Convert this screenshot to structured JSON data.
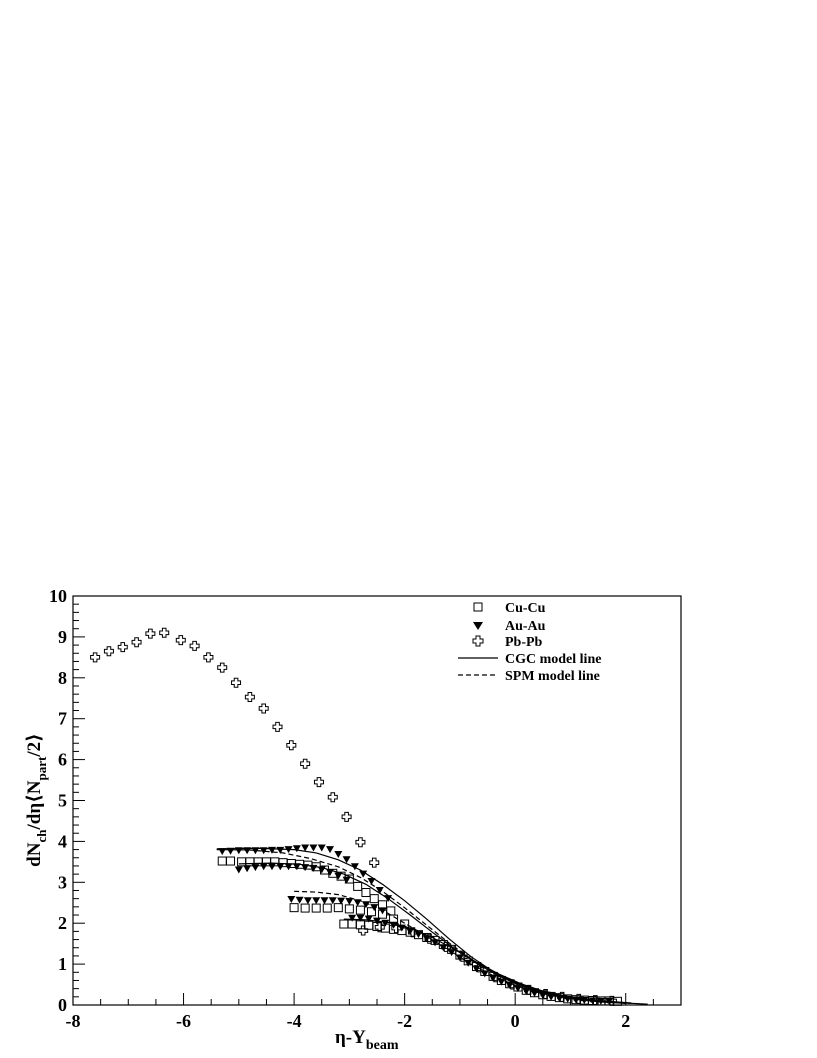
{
  "chart_data": {
    "type": "scatter",
    "title": "",
    "xlabel": "η-Y",
    "xlabel_sub": "beam",
    "ylabel_parts": [
      "dN",
      "ch",
      "/dη⟨N",
      "part",
      "/2⟩"
    ],
    "xlim": [
      -8,
      3
    ],
    "ylim": [
      0,
      10
    ],
    "x_ticks": [
      -8,
      -6,
      -4,
      -2,
      0,
      2
    ],
    "y_ticks": [
      0,
      1,
      2,
      3,
      4,
      5,
      6,
      7,
      8,
      9,
      10
    ],
    "grid": false,
    "legend_position": "top-right",
    "series": [
      {
        "name": "Cu-Cu",
        "marker": "open-square",
        "points": [
          [
            -5.3,
            3.52
          ],
          [
            -5.15,
            3.52
          ],
          [
            -4.95,
            3.5
          ],
          [
            -4.8,
            3.5
          ],
          [
            -4.65,
            3.5
          ],
          [
            -4.5,
            3.5
          ],
          [
            -4.35,
            3.5
          ],
          [
            -4.2,
            3.48
          ],
          [
            -4.05,
            3.46
          ],
          [
            -3.9,
            3.44
          ],
          [
            -3.75,
            3.42
          ],
          [
            -3.6,
            3.38
          ],
          [
            -3.45,
            3.3
          ],
          [
            -3.3,
            3.22
          ],
          [
            -3.15,
            3.15
          ],
          [
            -3.0,
            3.08
          ],
          [
            -2.85,
            2.9
          ],
          [
            -2.7,
            2.75
          ],
          [
            -2.55,
            2.6
          ],
          [
            -2.4,
            2.45
          ],
          [
            -2.25,
            2.3
          ],
          [
            -4.0,
            2.38
          ],
          [
            -3.8,
            2.37
          ],
          [
            -3.6,
            2.37
          ],
          [
            -3.4,
            2.37
          ],
          [
            -3.2,
            2.38
          ],
          [
            -3.0,
            2.35
          ],
          [
            -2.8,
            2.32
          ],
          [
            -2.6,
            2.28
          ],
          [
            -2.4,
            2.22
          ],
          [
            -2.2,
            2.1
          ],
          [
            -2.0,
            1.98
          ],
          [
            -3.1,
            1.98
          ],
          [
            -2.95,
            1.98
          ],
          [
            -2.8,
            1.96
          ],
          [
            -2.65,
            1.95
          ],
          [
            -2.5,
            1.92
          ],
          [
            -2.35,
            1.88
          ],
          [
            -2.2,
            1.85
          ],
          [
            -2.05,
            1.82
          ],
          [
            -1.9,
            1.78
          ],
          [
            -1.75,
            1.72
          ],
          [
            -1.6,
            1.65
          ],
          [
            -1.45,
            1.58
          ],
          [
            -1.3,
            1.48
          ],
          [
            -1.15,
            1.36
          ],
          [
            -1.0,
            1.22
          ],
          [
            -0.85,
            1.08
          ],
          [
            -0.7,
            0.94
          ],
          [
            -0.55,
            0.82
          ],
          [
            -0.4,
            0.7
          ],
          [
            -0.25,
            0.6
          ],
          [
            -0.1,
            0.52
          ],
          [
            0.05,
            0.44
          ],
          [
            0.2,
            0.36
          ],
          [
            0.35,
            0.3
          ],
          [
            0.5,
            0.25
          ],
          [
            0.65,
            0.21
          ],
          [
            0.8,
            0.18
          ],
          [
            0.95,
            0.15
          ],
          [
            1.1,
            0.13
          ],
          [
            1.25,
            0.12
          ],
          [
            1.4,
            0.11
          ],
          [
            1.55,
            0.1
          ],
          [
            1.7,
            0.1
          ],
          [
            1.85,
            0.09
          ]
        ]
      },
      {
        "name": "Au-Au",
        "marker": "filled-triangle-down",
        "points": [
          [
            -5.3,
            3.75
          ],
          [
            -5.15,
            3.76
          ],
          [
            -5.0,
            3.77
          ],
          [
            -4.85,
            3.77
          ],
          [
            -4.7,
            3.77
          ],
          [
            -4.55,
            3.77
          ],
          [
            -4.4,
            3.78
          ],
          [
            -4.25,
            3.78
          ],
          [
            -4.1,
            3.8
          ],
          [
            -3.95,
            3.82
          ],
          [
            -3.8,
            3.84
          ],
          [
            -3.65,
            3.84
          ],
          [
            -3.5,
            3.84
          ],
          [
            -3.35,
            3.8
          ],
          [
            -3.2,
            3.68
          ],
          [
            -3.05,
            3.55
          ],
          [
            -2.9,
            3.38
          ],
          [
            -2.75,
            3.2
          ],
          [
            -2.6,
            3.02
          ],
          [
            -2.45,
            2.8
          ],
          [
            -2.3,
            2.6
          ],
          [
            -5.0,
            3.3
          ],
          [
            -4.85,
            3.33
          ],
          [
            -4.7,
            3.36
          ],
          [
            -4.55,
            3.38
          ],
          [
            -4.4,
            3.38
          ],
          [
            -4.25,
            3.38
          ],
          [
            -4.1,
            3.38
          ],
          [
            -3.95,
            3.38
          ],
          [
            -3.8,
            3.36
          ],
          [
            -3.65,
            3.34
          ],
          [
            -3.5,
            3.3
          ],
          [
            -3.35,
            3.24
          ],
          [
            -3.2,
            3.15
          ],
          [
            -3.05,
            3.05
          ],
          [
            -4.05,
            2.58
          ],
          [
            -3.9,
            2.56
          ],
          [
            -3.75,
            2.55
          ],
          [
            -3.6,
            2.55
          ],
          [
            -3.45,
            2.55
          ],
          [
            -3.3,
            2.55
          ],
          [
            -3.15,
            2.54
          ],
          [
            -3.0,
            2.53
          ],
          [
            -2.85,
            2.5
          ],
          [
            -2.7,
            2.45
          ],
          [
            -2.55,
            2.38
          ],
          [
            -2.4,
            2.3
          ],
          [
            -2.95,
            2.12
          ],
          [
            -2.8,
            2.12
          ],
          [
            -2.65,
            2.1
          ],
          [
            -2.5,
            2.05
          ],
          [
            -2.35,
            2.0
          ],
          [
            -2.2,
            1.95
          ],
          [
            -2.05,
            1.88
          ],
          [
            -1.9,
            1.8
          ],
          [
            -1.75,
            1.72
          ],
          [
            -1.6,
            1.62
          ],
          [
            -1.45,
            1.52
          ],
          [
            -1.3,
            1.4
          ],
          [
            -1.15,
            1.28
          ],
          [
            -1.0,
            1.15
          ],
          [
            -0.85,
            1.02
          ],
          [
            -0.7,
            0.88
          ],
          [
            -0.55,
            0.76
          ],
          [
            -0.4,
            0.65
          ],
          [
            -0.25,
            0.56
          ],
          [
            -0.1,
            0.48
          ],
          [
            0.05,
            0.4
          ],
          [
            0.2,
            0.33
          ],
          [
            0.35,
            0.28
          ],
          [
            0.5,
            0.23
          ],
          [
            0.65,
            0.19
          ],
          [
            0.8,
            0.16
          ],
          [
            0.95,
            0.14
          ],
          [
            1.1,
            0.12
          ],
          [
            1.25,
            0.11
          ],
          [
            1.4,
            0.1
          ],
          [
            1.55,
            0.09
          ],
          [
            1.7,
            0.09
          ]
        ]
      },
      {
        "name": "Pb-Pb",
        "marker": "open-cross",
        "points": [
          [
            -7.6,
            8.5
          ],
          [
            -7.35,
            8.65
          ],
          [
            -7.1,
            8.75
          ],
          [
            -6.85,
            8.87
          ],
          [
            -6.6,
            9.08
          ],
          [
            -6.35,
            9.1
          ],
          [
            -6.05,
            8.92
          ],
          [
            -5.8,
            8.78
          ],
          [
            -5.55,
            8.5
          ],
          [
            -5.3,
            8.25
          ],
          [
            -5.05,
            7.88
          ],
          [
            -4.8,
            7.53
          ],
          [
            -4.55,
            7.25
          ],
          [
            -4.3,
            6.8
          ],
          [
            -4.05,
            6.35
          ],
          [
            -3.8,
            5.9
          ],
          [
            -3.55,
            5.45
          ],
          [
            -3.3,
            5.08
          ],
          [
            -3.05,
            4.6
          ],
          [
            -2.8,
            3.98
          ],
          [
            -2.55,
            3.48
          ],
          [
            -2.75,
            1.82
          ],
          [
            -2.45,
            1.9
          ],
          [
            -2.15,
            1.88
          ],
          [
            -1.85,
            1.78
          ],
          [
            -1.55,
            1.62
          ],
          [
            -1.25,
            1.42
          ],
          [
            -0.95,
            1.18
          ],
          [
            -0.65,
            0.92
          ],
          [
            -0.35,
            0.68
          ],
          [
            -0.05,
            0.5
          ],
          [
            0.25,
            0.37
          ],
          [
            0.55,
            0.27
          ],
          [
            0.85,
            0.2
          ],
          [
            1.15,
            0.15
          ],
          [
            1.45,
            0.12
          ],
          [
            1.75,
            0.1
          ]
        ]
      },
      {
        "name": "CGC model line",
        "marker": "solid-line",
        "lines": [
          [
            [
              -5.4,
              3.82
            ],
            [
              -4.6,
              3.83
            ],
            [
              -4.0,
              3.8
            ],
            [
              -3.6,
              3.72
            ],
            [
              -3.2,
              3.55
            ],
            [
              -2.8,
              3.3
            ],
            [
              -2.4,
              2.95
            ],
            [
              -2.0,
              2.55
            ],
            [
              -1.6,
              2.1
            ],
            [
              -1.2,
              1.62
            ],
            [
              -0.8,
              1.18
            ],
            [
              -0.4,
              0.82
            ],
            [
              0.0,
              0.55
            ],
            [
              0.4,
              0.35
            ],
            [
              0.8,
              0.22
            ],
            [
              1.2,
              0.14
            ],
            [
              1.6,
              0.08
            ],
            [
              2.0,
              0.05
            ],
            [
              2.4,
              0.02
            ]
          ],
          [
            [
              -5.0,
              3.45
            ],
            [
              -4.4,
              3.47
            ],
            [
              -3.9,
              3.44
            ],
            [
              -3.5,
              3.36
            ],
            [
              -3.1,
              3.2
            ],
            [
              -2.7,
              2.95
            ],
            [
              -2.3,
              2.6
            ],
            [
              -1.9,
              2.2
            ],
            [
              -1.5,
              1.78
            ],
            [
              -1.1,
              1.38
            ],
            [
              -0.7,
              1.02
            ],
            [
              -0.3,
              0.72
            ],
            [
              0.1,
              0.5
            ],
            [
              0.5,
              0.32
            ],
            [
              0.9,
              0.2
            ],
            [
              1.3,
              0.13
            ],
            [
              1.7,
              0.08
            ],
            [
              2.1,
              0.04
            ]
          ],
          [
            [
              -3.1,
              2.1
            ],
            [
              -2.7,
              2.08
            ],
            [
              -2.3,
              2.02
            ],
            [
              -1.9,
              1.88
            ],
            [
              -1.5,
              1.65
            ],
            [
              -1.1,
              1.36
            ],
            [
              -0.7,
              1.05
            ],
            [
              -0.3,
              0.76
            ],
            [
              0.1,
              0.52
            ],
            [
              0.5,
              0.34
            ],
            [
              0.9,
              0.22
            ],
            [
              1.3,
              0.14
            ],
            [
              1.7,
              0.09
            ],
            [
              2.1,
              0.05
            ]
          ]
        ]
      },
      {
        "name": "SPM model line",
        "marker": "dashed-line",
        "lines": [
          [
            [
              -5.4,
              3.8
            ],
            [
              -4.8,
              3.79
            ],
            [
              -4.2,
              3.72
            ],
            [
              -3.7,
              3.58
            ],
            [
              -3.2,
              3.38
            ],
            [
              -2.8,
              3.12
            ],
            [
              -2.4,
              2.78
            ],
            [
              -2.0,
              2.38
            ],
            [
              -1.6,
              1.95
            ],
            [
              -1.2,
              1.52
            ],
            [
              -0.8,
              1.12
            ],
            [
              -0.4,
              0.78
            ],
            [
              0.0,
              0.52
            ],
            [
              0.4,
              0.33
            ],
            [
              0.8,
              0.2
            ],
            [
              1.2,
              0.12
            ],
            [
              1.6,
              0.07
            ],
            [
              2.0,
              0.04
            ]
          ],
          [
            [
              -4.0,
              2.78
            ],
            [
              -3.6,
              2.76
            ],
            [
              -3.2,
              2.7
            ],
            [
              -2.8,
              2.55
            ],
            [
              -2.4,
              2.32
            ],
            [
              -2.0,
              2.0
            ],
            [
              -1.6,
              1.68
            ],
            [
              -1.2,
              1.34
            ],
            [
              -0.8,
              1.0
            ],
            [
              -0.4,
              0.72
            ],
            [
              0.0,
              0.48
            ],
            [
              0.4,
              0.31
            ],
            [
              0.8,
              0.19
            ],
            [
              1.2,
              0.12
            ],
            [
              1.6,
              0.07
            ],
            [
              2.0,
              0.04
            ]
          ]
        ]
      }
    ]
  }
}
